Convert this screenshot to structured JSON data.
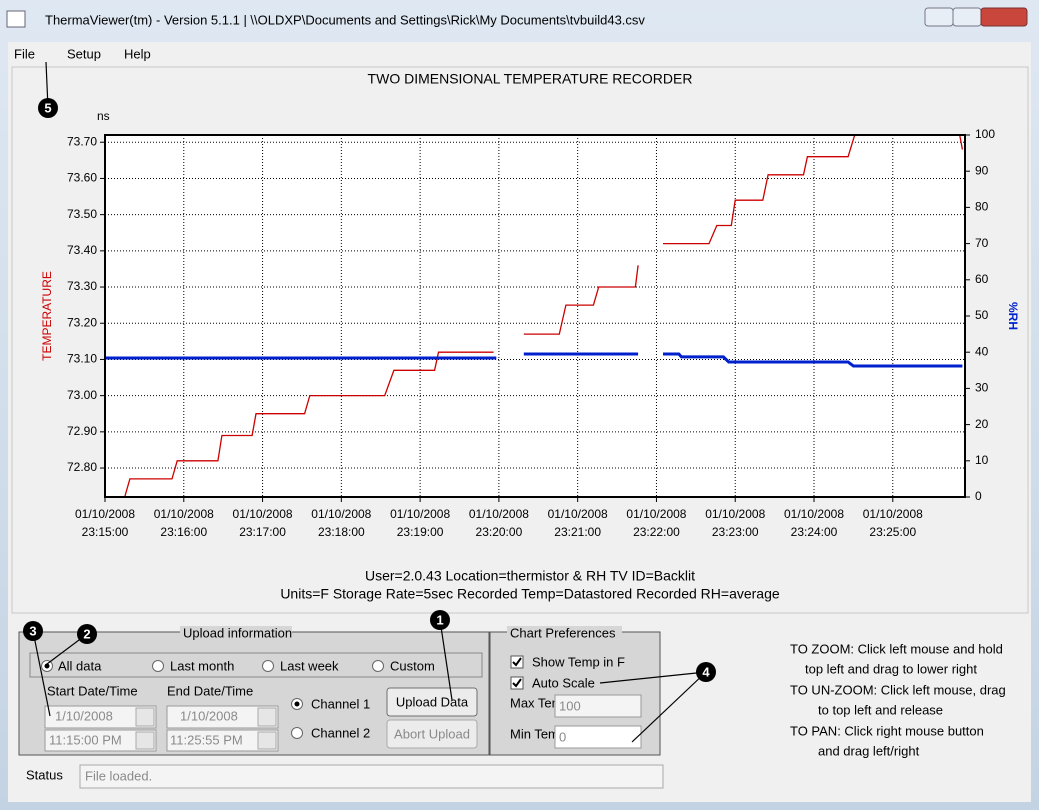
{
  "window": {
    "title": "ThermaViewer(tm) - Version 5.1.1 | \\\\OLDXP\\Documents and Settings\\Rick\\My Documents\\tvbuild43.csv"
  },
  "menu": [
    "File",
    "Setup",
    "Help"
  ],
  "chart_data": {
    "type": "line",
    "title": "TWO DIMENSIONAL TEMPERATURE RECORDER",
    "unit_label": "ns",
    "y_label": "TEMPERATURE",
    "y2_label": "%RH",
    "xlim": [
      "2008-01-10 23:15:00",
      "2008-01-10 23:25:55"
    ],
    "xticks": [
      {
        "value": "2008-01-10 23:15:00",
        "label": [
          "01/10/2008",
          "23:15:00"
        ]
      },
      {
        "value": "2008-01-10 23:16:00",
        "label": [
          "01/10/2008",
          "23:16:00"
        ]
      },
      {
        "value": "2008-01-10 23:17:00",
        "label": [
          "01/10/2008",
          "23:17:00"
        ]
      },
      {
        "value": "2008-01-10 23:18:00",
        "label": [
          "01/10/2008",
          "23:18:00"
        ]
      },
      {
        "value": "2008-01-10 23:19:00",
        "label": [
          "01/10/2008",
          "23:19:00"
        ]
      },
      {
        "value": "2008-01-10 23:20:00",
        "label": [
          "01/10/2008",
          "23:20:00"
        ]
      },
      {
        "value": "2008-01-10 23:21:00",
        "label": [
          "01/10/2008",
          "23:21:00"
        ]
      },
      {
        "value": "2008-01-10 23:22:00",
        "label": [
          "01/10/2008",
          "23:22:00"
        ]
      },
      {
        "value": "2008-01-10 23:23:00",
        "label": [
          "01/10/2008",
          "23:23:00"
        ]
      },
      {
        "value": "2008-01-10 23:24:00",
        "label": [
          "01/10/2008",
          "23:24:00"
        ]
      },
      {
        "value": "2008-01-10 23:25:00",
        "label": [
          "01/10/2008",
          "23:25:00"
        ]
      }
    ],
    "ylim": [
      72.72,
      73.72
    ],
    "yticks": [
      {
        "value": 72.8,
        "label": "72.80"
      },
      {
        "value": 72.9,
        "label": "72.90"
      },
      {
        "value": 73.0,
        "label": "73.00"
      },
      {
        "value": 73.1,
        "label": "73.10"
      },
      {
        "value": 73.2,
        "label": "73.20"
      },
      {
        "value": 73.3,
        "label": "73.30"
      },
      {
        "value": 73.4,
        "label": "73.40"
      },
      {
        "value": 73.5,
        "label": "73.50"
      },
      {
        "value": 73.6,
        "label": "73.60"
      },
      {
        "value": 73.7,
        "label": "73.70"
      }
    ],
    "y2lim": [
      0,
      100
    ],
    "y2ticks": [
      0,
      10,
      20,
      30,
      40,
      50,
      60,
      70,
      80,
      90,
      100
    ],
    "grid": true,
    "series": [
      {
        "color": "#cc0000",
        "axis": "y",
        "x": [
          "2008-01-10 23:15:15",
          "2008-01-10 23:15:19",
          "2008-01-10 23:15:51",
          "2008-01-10 23:15:55",
          "2008-01-10 23:16:26",
          "2008-01-10 23:16:29",
          "2008-01-10 23:16:52",
          "2008-01-10 23:16:55",
          "2008-01-10 23:17:32",
          "2008-01-10 23:17:36",
          "2008-01-10 23:18:33",
          "2008-01-10 23:18:40",
          "2008-01-10 23:19:11",
          "2008-01-10 23:19:14",
          "2008-01-10 23:19:56",
          null,
          "2008-01-10 23:20:19",
          "2008-01-10 23:20:46",
          "2008-01-10 23:20:51",
          "2008-01-10 23:21:12",
          "2008-01-10 23:21:16",
          "2008-01-10 23:21:44",
          "2008-01-10 23:21:46",
          null,
          "2008-01-10 23:22:05",
          "2008-01-10 23:22:40",
          "2008-01-10 23:22:46",
          "2008-01-10 23:22:57",
          "2008-01-10 23:23:00",
          "2008-01-10 23:23:21",
          "2008-01-10 23:23:25",
          "2008-01-10 23:23:52",
          "2008-01-10 23:23:55",
          "2008-01-10 23:24:26",
          "2008-01-10 23:24:31",
          "2008-01-10 23:25:51",
          "2008-01-10 23:25:53"
        ],
        "values": [
          72.72,
          72.77,
          72.77,
          72.82,
          72.82,
          72.89,
          72.89,
          72.95,
          72.95,
          73.0,
          73.0,
          73.07,
          73.07,
          73.12,
          73.12,
          null,
          73.17,
          73.17,
          73.25,
          73.25,
          73.3,
          73.3,
          73.36,
          null,
          73.42,
          73.42,
          73.47,
          73.47,
          73.54,
          73.54,
          73.61,
          73.61,
          73.66,
          73.66,
          73.72,
          73.72,
          73.68
        ]
      },
      {
        "color": "#0022cc",
        "axis": "y2",
        "x": [
          "2008-01-10 23:15:00",
          "2008-01-10 23:19:58",
          null,
          "2008-01-10 23:20:19",
          "2008-01-10 23:21:46",
          null,
          "2008-01-10 23:22:05",
          "2008-01-10 23:22:17",
          "2008-01-10 23:22:19",
          "2008-01-10 23:22:51",
          "2008-01-10 23:22:55",
          "2008-01-10 23:24:26",
          "2008-01-10 23:24:30",
          "2008-01-10 23:25:53"
        ],
        "values": [
          38.4,
          38.4,
          null,
          39.5,
          39.5,
          null,
          39.5,
          39.5,
          38.7,
          38.7,
          37.3,
          37.3,
          36.2,
          36.2
        ]
      }
    ],
    "info": [
      "User=2.0.43  Location=thermistor & RH  TV ID=Backlit",
      "Units=F  Storage Rate=5sec   Recorded Temp=Datastored  Recorded RH=average"
    ]
  },
  "upload": {
    "legend": "Upload information",
    "ranges": [
      "All data",
      "Last month",
      "Last week",
      "Custom"
    ],
    "start_label": "Start Date/Time",
    "end_label": "End Date/Time",
    "start_date": "1/10/2008",
    "start_time": "11:15:00 PM",
    "end_date": "1/10/2008",
    "end_time": "11:25:55 PM",
    "channels": [
      "Channel 1",
      "Channel 2"
    ],
    "upload_button": "Upload Data",
    "abort_button": "Abort Upload"
  },
  "preferences": {
    "legend": "Chart Preferences",
    "show_temp": "Show Temp in F",
    "auto_scale": "Auto Scale",
    "max_label": "Max Temp",
    "max_value": "100",
    "min_label": "Min Temp",
    "min_value": "0"
  },
  "help": [
    "TO ZOOM: Click left mouse and hold",
    "top left and drag to lower right",
    "TO UN-ZOOM: Click left mouse, drag",
    "to top left and release",
    "TO PAN: Click right mouse button",
    "and drag left/right"
  ],
  "status": {
    "label": "Status",
    "text": "File loaded."
  },
  "callouts": [
    "1",
    "2",
    "3",
    "4",
    "5"
  ]
}
